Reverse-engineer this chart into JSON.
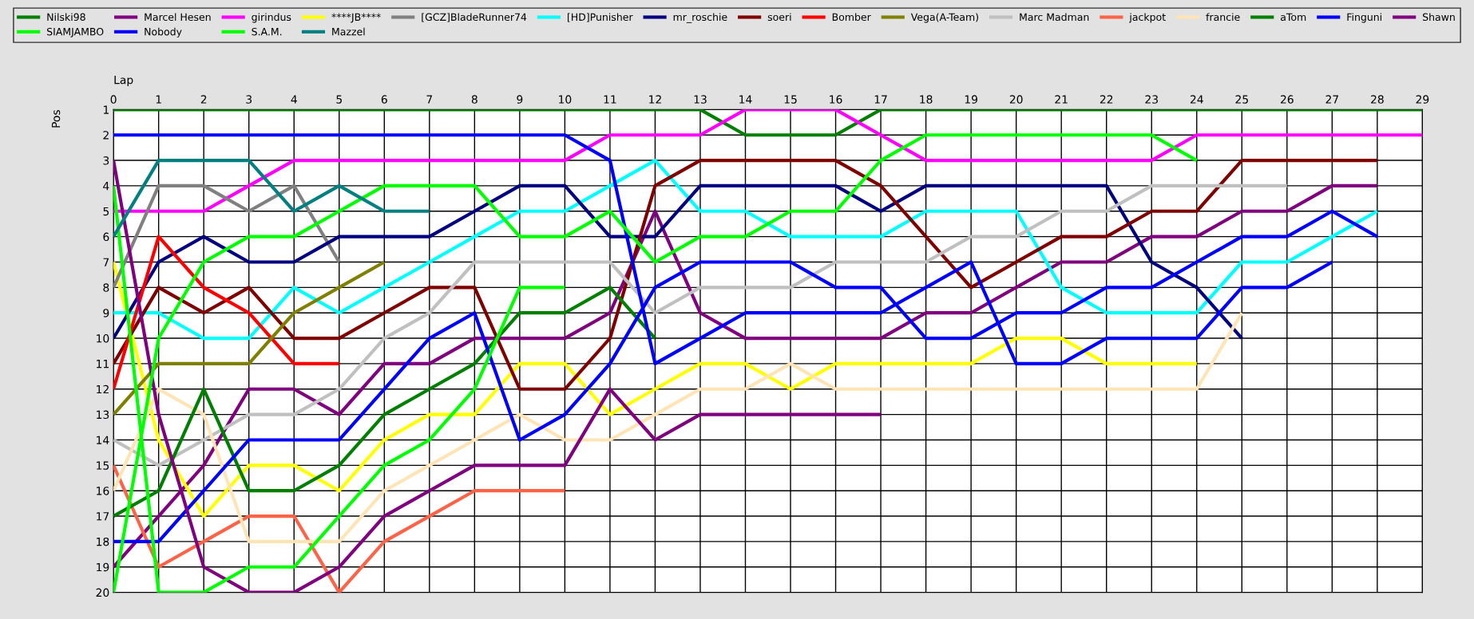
{
  "chart_data": {
    "type": "line",
    "xlabel": "Lap",
    "ylabel": "Pos",
    "x": [
      0,
      1,
      2,
      3,
      4,
      5,
      6,
      7,
      8,
      9,
      10,
      11,
      12,
      13,
      14,
      15,
      16,
      17,
      18,
      19,
      20,
      21,
      22,
      23,
      24,
      25,
      26,
      27,
      28,
      29
    ],
    "xlim": [
      0,
      29
    ],
    "xticks": [
      0,
      1,
      2,
      3,
      4,
      5,
      6,
      7,
      8,
      9,
      10,
      11,
      12,
      13,
      14,
      15,
      16,
      17,
      18,
      19,
      20,
      21,
      22,
      23,
      24,
      25,
      26,
      27,
      28,
      29
    ],
    "ylim": [
      20,
      1
    ],
    "yticks": [
      1,
      2,
      3,
      4,
      5,
      6,
      7,
      8,
      9,
      10,
      11,
      12,
      13,
      14,
      15,
      16,
      17,
      18,
      19,
      20
    ],
    "grid": true,
    "legend": "top",
    "marker": "none",
    "line_style": "solid",
    "series": [
      {
        "name": "Nilski98",
        "color": "#008000",
        "values": [
          1,
          1,
          1,
          1,
          1,
          1,
          1,
          1,
          1,
          1,
          1,
          1,
          1,
          1,
          2,
          2,
          2,
          1,
          1,
          1,
          1,
          1,
          1,
          1,
          1,
          1,
          1,
          1,
          1,
          1
        ]
      },
      {
        "name": "Marcel Hesen",
        "color": "#800080",
        "values": [
          19,
          17,
          15,
          12,
          12,
          13,
          11,
          11,
          10,
          10,
          10,
          9,
          5,
          9,
          10,
          10,
          10,
          10,
          9,
          9,
          8,
          7,
          7,
          6,
          6,
          5,
          5,
          4,
          4,
          null
        ]
      },
      {
        "name": "girindus",
        "color": "#ff00ff",
        "values": [
          5,
          5,
          5,
          4,
          3,
          3,
          3,
          3,
          3,
          3,
          3,
          2,
          2,
          2,
          1,
          1,
          1,
          2,
          3,
          3,
          3,
          3,
          3,
          3,
          2,
          2,
          2,
          2,
          2,
          2
        ]
      },
      {
        "name": "****JB****",
        "color": "#ffff00",
        "values": [
          7,
          14,
          17,
          15,
          15,
          16,
          14,
          13,
          13,
          11,
          11,
          13,
          12,
          11,
          11,
          12,
          11,
          11,
          11,
          11,
          10,
          10,
          11,
          11,
          11,
          null,
          null,
          null,
          null,
          null
        ]
      },
      {
        "name": "[GCZ]BladeRunner74",
        "color": "#808080",
        "values": [
          8,
          4,
          4,
          5,
          4,
          7,
          null,
          null,
          null,
          null,
          null,
          null,
          null,
          null,
          null,
          null,
          null,
          null,
          null,
          null,
          null,
          null,
          null,
          null,
          null,
          null,
          null,
          null,
          null,
          null
        ]
      },
      {
        "name": "[HD]Punisher",
        "color": "#00ffff",
        "values": [
          9,
          9,
          10,
          10,
          8,
          9,
          8,
          7,
          6,
          5,
          5,
          4,
          3,
          5,
          5,
          6,
          6,
          6,
          5,
          5,
          5,
          8,
          9,
          9,
          9,
          7,
          7,
          6,
          5,
          null
        ]
      },
      {
        "name": "mr_roschie",
        "color": "#000080",
        "values": [
          10,
          7,
          6,
          7,
          7,
          6,
          6,
          6,
          5,
          4,
          4,
          6,
          6,
          4,
          4,
          4,
          4,
          5,
          4,
          4,
          4,
          4,
          4,
          7,
          8,
          10,
          null,
          null,
          null,
          null
        ]
      },
      {
        "name": "soeri",
        "color": "#800000",
        "values": [
          11,
          8,
          9,
          8,
          10,
          10,
          9,
          8,
          8,
          12,
          12,
          10,
          4,
          3,
          3,
          3,
          3,
          4,
          6,
          8,
          7,
          6,
          6,
          5,
          5,
          3,
          3,
          3,
          3,
          null
        ]
      },
      {
        "name": "Bomber",
        "color": "#ff0000",
        "values": [
          12,
          6,
          8,
          9,
          11,
          11,
          null,
          null,
          null,
          null,
          null,
          null,
          null,
          null,
          null,
          null,
          null,
          null,
          null,
          null,
          null,
          null,
          null,
          null,
          null,
          null,
          null,
          null,
          null,
          null
        ]
      },
      {
        "name": "Vega(A-Team)",
        "color": "#808000",
        "values": [
          13,
          11,
          11,
          11,
          9,
          8,
          7,
          null,
          null,
          null,
          null,
          null,
          null,
          null,
          null,
          null,
          null,
          null,
          null,
          null,
          null,
          null,
          null,
          null,
          null,
          null,
          null,
          null,
          null,
          null
        ]
      },
      {
        "name": "Marc Madman",
        "color": "#c0c0c0",
        "values": [
          14,
          15,
          14,
          13,
          13,
          12,
          10,
          9,
          7,
          7,
          7,
          7,
          9,
          8,
          8,
          8,
          7,
          7,
          7,
          6,
          6,
          5,
          5,
          4,
          4,
          4,
          4,
          null,
          null,
          null
        ]
      },
      {
        "name": "jackpot",
        "color": "#ff6347",
        "values": [
          15,
          19,
          18,
          17,
          17,
          20,
          18,
          17,
          16,
          16,
          16,
          null,
          null,
          null,
          null,
          null,
          null,
          null,
          null,
          null,
          null,
          null,
          null,
          null,
          null,
          null,
          null,
          null,
          null,
          null
        ]
      },
      {
        "name": "francie",
        "color": "#ffe4b5",
        "values": [
          16,
          12,
          13,
          18,
          18,
          18,
          16,
          15,
          14,
          13,
          14,
          14,
          13,
          12,
          12,
          11,
          12,
          12,
          12,
          12,
          12,
          12,
          12,
          12,
          12,
          9,
          null,
          null,
          null,
          null
        ]
      },
      {
        "name": "aTom",
        "color": "#008000",
        "values": [
          17,
          16,
          12,
          16,
          16,
          15,
          13,
          12,
          11,
          9,
          9,
          8,
          10,
          null,
          null,
          null,
          null,
          null,
          null,
          null,
          null,
          null,
          null,
          null,
          null,
          null,
          null,
          null,
          null,
          null
        ]
      },
      {
        "name": "Finguni",
        "color": "#0000ff",
        "values": [
          18,
          18,
          16,
          14,
          14,
          14,
          12,
          10,
          9,
          14,
          13,
          11,
          8,
          7,
          7,
          7,
          8,
          8,
          10,
          10,
          9,
          9,
          8,
          8,
          7,
          6,
          6,
          5,
          6,
          null
        ]
      },
      {
        "name": "Shawn",
        "color": "#800080",
        "values": [
          3,
          13,
          19,
          20,
          20,
          19,
          17,
          16,
          15,
          15,
          15,
          12,
          14,
          13,
          13,
          13,
          13,
          13,
          null,
          null,
          null,
          null,
          null,
          null,
          null,
          null,
          null,
          null,
          null,
          null
        ]
      },
      {
        "name": "SIAMJAMBO",
        "color": "#00ff00",
        "values": [
          4,
          20,
          20,
          19,
          19,
          17,
          15,
          14,
          12,
          8,
          8,
          null,
          null,
          null,
          null,
          null,
          null,
          null,
          null,
          null,
          null,
          null,
          null,
          null,
          null,
          null,
          null,
          null,
          null,
          null
        ]
      },
      {
        "name": "Nobody",
        "color": "#0000ff",
        "values": [
          2,
          2,
          2,
          2,
          2,
          2,
          2,
          2,
          2,
          2,
          2,
          3,
          11,
          10,
          9,
          9,
          9,
          9,
          8,
          7,
          11,
          11,
          10,
          10,
          10,
          8,
          8,
          7,
          null,
          null
        ]
      },
      {
        "name": "S.A.M.",
        "color": "#00ff00",
        "values": [
          20,
          10,
          7,
          6,
          6,
          5,
          4,
          4,
          4,
          6,
          6,
          5,
          7,
          6,
          6,
          5,
          5,
          3,
          2,
          2,
          2,
          2,
          2,
          2,
          3,
          null,
          null,
          null,
          null,
          null
        ]
      },
      {
        "name": "Mazzel",
        "color": "#008080",
        "values": [
          6,
          3,
          3,
          3,
          5,
          4,
          5,
          5,
          null,
          null,
          null,
          null,
          null,
          null,
          null,
          null,
          null,
          null,
          null,
          null,
          null,
          null,
          null,
          null,
          null,
          null,
          null,
          null,
          null,
          null
        ]
      }
    ]
  }
}
